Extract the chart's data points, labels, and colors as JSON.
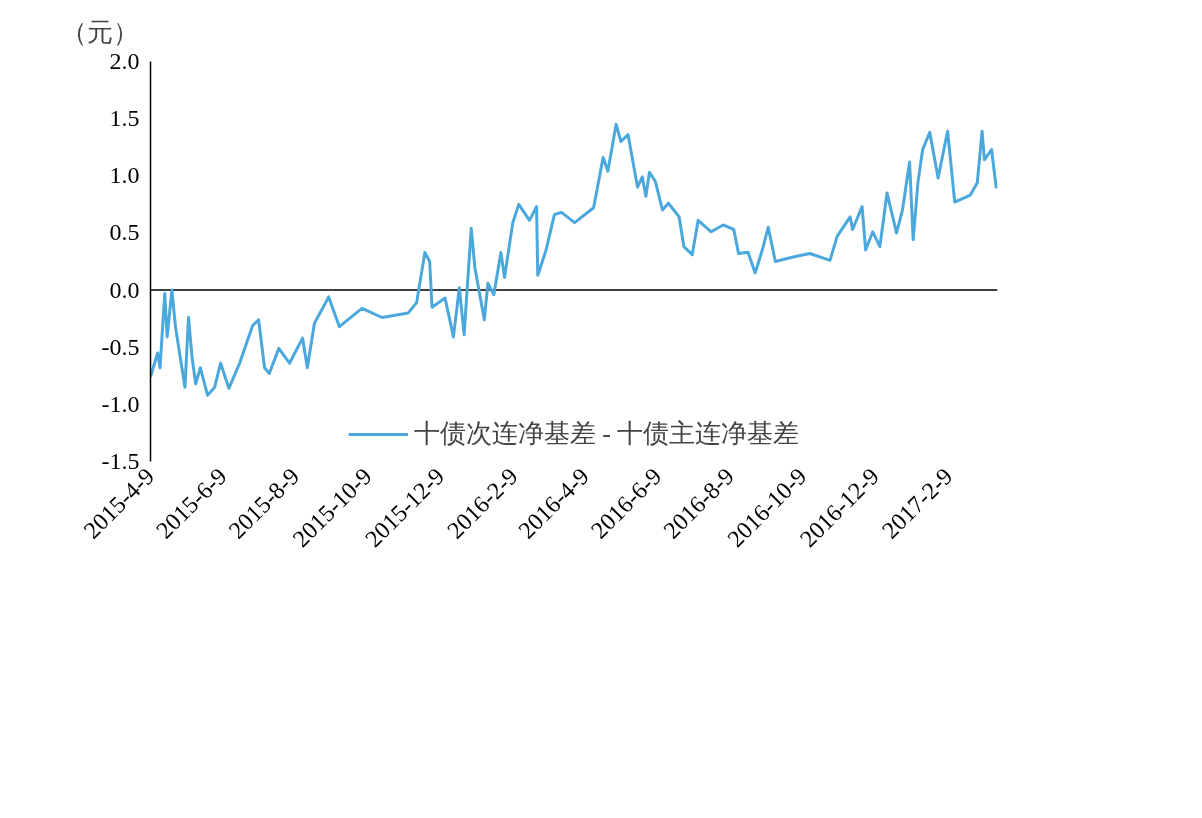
{
  "chart_data": {
    "type": "line",
    "ylabel": "（元）",
    "legend": "bottom",
    "grid": false,
    "xlim": [
      "2015-04-09",
      "2017-03-22"
    ],
    "xticks": [
      {
        "value": "2015-04-09",
        "label": "2015-4-9"
      },
      {
        "value": "2015-06-09",
        "label": "2015-6-9"
      },
      {
        "value": "2015-08-09",
        "label": "2015-8-9"
      },
      {
        "value": "2015-10-09",
        "label": "2015-10-9"
      },
      {
        "value": "2015-12-09",
        "label": "2015-12-9"
      },
      {
        "value": "2016-02-09",
        "label": "2016-2-9"
      },
      {
        "value": "2016-04-09",
        "label": "2016-4-9"
      },
      {
        "value": "2016-06-09",
        "label": "2016-6-9"
      },
      {
        "value": "2016-08-09",
        "label": "2016-8-9"
      },
      {
        "value": "2016-10-09",
        "label": "2016-10-9"
      },
      {
        "value": "2016-12-09",
        "label": "2016-12-9"
      },
      {
        "value": "2017-02-09",
        "label": "2017-2-9"
      }
    ],
    "ylim": [
      -1.5,
      2.0
    ],
    "yticks": [
      {
        "value": -1.5,
        "label": "-1.5"
      },
      {
        "value": -1.0,
        "label": "-1.0"
      },
      {
        "value": -0.5,
        "label": "-0.5"
      },
      {
        "value": 0,
        "label": "0.0"
      },
      {
        "value": 0.5,
        "label": "0.5"
      },
      {
        "value": 1.0,
        "label": "1.0"
      },
      {
        "value": 1.5,
        "label": "1.5"
      },
      {
        "value": 2.0,
        "label": "2.0"
      }
    ],
    "ref_lines": [
      {
        "axis": "y",
        "value": 0,
        "color": "#000000"
      }
    ],
    "series": [
      {
        "name": "十债次连净基差 - 十债主连净基差",
        "color": "#4aa8dc",
        "x": [
          "2015-04-09",
          "2015-04-15",
          "2015-04-17",
          "2015-04-21",
          "2015-04-23",
          "2015-04-27",
          "2015-04-30",
          "2015-05-08",
          "2015-05-11",
          "2015-05-14",
          "2015-05-17",
          "2015-05-21",
          "2015-05-27",
          "2015-06-02",
          "2015-06-07",
          "2015-06-14",
          "2015-06-23",
          "2015-07-04",
          "2015-07-09",
          "2015-07-14",
          "2015-07-18",
          "2015-07-26",
          "2015-08-04",
          "2015-08-15",
          "2015-08-19",
          "2015-08-25",
          "2015-09-06",
          "2015-09-15",
          "2015-10-04",
          "2015-10-21",
          "2015-11-12",
          "2015-11-19",
          "2015-11-26",
          "2015-11-30",
          "2015-12-02",
          "2015-12-13",
          "2015-12-20",
          "2015-12-25",
          "2015-12-29",
          "2016-01-04",
          "2016-01-07",
          "2016-01-15",
          "2016-01-18",
          "2016-01-23",
          "2016-01-29",
          "2016-02-01",
          "2016-02-08",
          "2016-02-13",
          "2016-02-22",
          "2016-02-28",
          "2016-02-29",
          "2016-03-07",
          "2016-03-14",
          "2016-03-20",
          "2016-03-31",
          "2016-04-16",
          "2016-04-24",
          "2016-04-28",
          "2016-05-05",
          "2016-05-09",
          "2016-05-15",
          "2016-05-23",
          "2016-05-27",
          "2016-05-30",
          "2016-06-02",
          "2016-06-07",
          "2016-06-13",
          "2016-06-18",
          "2016-06-27",
          "2016-07-01",
          "2016-07-08",
          "2016-07-13",
          "2016-07-24",
          "2016-08-03",
          "2016-08-12",
          "2016-08-16",
          "2016-08-24",
          "2016-08-30",
          "2016-09-05",
          "2016-09-10",
          "2016-09-16",
          "2016-10-01",
          "2016-10-15",
          "2016-11-01",
          "2016-11-07",
          "2016-11-18",
          "2016-11-20",
          "2016-11-28",
          "2016-12-01",
          "2016-12-07",
          "2016-12-13",
          "2016-12-19",
          "2016-12-27",
          "2017-01-01",
          "2017-01-07",
          "2017-01-10",
          "2017-01-14",
          "2017-01-18",
          "2017-01-24",
          "2017-01-31",
          "2017-02-08",
          "2017-02-14",
          "2017-02-27",
          "2017-03-05",
          "2017-03-09",
          "2017-03-11",
          "2017-03-17",
          "2017-03-21"
        ],
        "values": [
          -0.76,
          -0.55,
          -0.68,
          -0.03,
          -0.41,
          0.0,
          -0.32,
          -0.85,
          -0.24,
          -0.59,
          -0.82,
          -0.68,
          -0.92,
          -0.85,
          -0.64,
          -0.86,
          -0.64,
          -0.31,
          -0.26,
          -0.68,
          -0.73,
          -0.51,
          -0.64,
          -0.42,
          -0.68,
          -0.29,
          -0.06,
          -0.32,
          -0.16,
          -0.24,
          -0.2,
          -0.11,
          0.33,
          0.25,
          -0.15,
          -0.07,
          -0.41,
          0.02,
          -0.39,
          0.54,
          0.2,
          -0.26,
          0.06,
          -0.04,
          0.33,
          0.11,
          0.59,
          0.75,
          0.61,
          0.73,
          0.13,
          0.35,
          0.66,
          0.68,
          0.59,
          0.72,
          1.16,
          1.04,
          1.45,
          1.3,
          1.36,
          0.9,
          0.99,
          0.82,
          1.03,
          0.95,
          0.7,
          0.76,
          0.64,
          0.38,
          0.31,
          0.61,
          0.51,
          0.57,
          0.53,
          0.32,
          0.33,
          0.15,
          0.35,
          0.55,
          0.25,
          0.29,
          0.32,
          0.26,
          0.47,
          0.64,
          0.53,
          0.73,
          0.35,
          0.51,
          0.38,
          0.85,
          0.5,
          0.7,
          1.12,
          0.44,
          0.94,
          1.23,
          1.38,
          0.98,
          1.39,
          0.77,
          0.83,
          0.94,
          1.39,
          1.14,
          1.23,
          0.89
        ]
      }
    ]
  }
}
